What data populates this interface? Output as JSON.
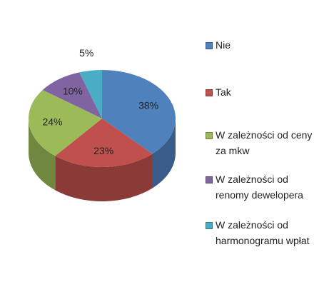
{
  "chart_data": {
    "type": "pie",
    "categories": [
      "Nie",
      "Tak",
      "W zależności od ceny za mkw",
      "W zależności od renomy dewelopera",
      "W zależności od harmonogramu wpłat"
    ],
    "values": [
      38,
      23,
      24,
      10,
      5
    ],
    "value_labels": [
      "38%",
      "23%",
      "24%",
      "10%",
      "5%"
    ],
    "colors": [
      "#4f81bd",
      "#c0504d",
      "#9bbb59",
      "#8064a2",
      "#4bacc6"
    ],
    "legend": "right"
  }
}
